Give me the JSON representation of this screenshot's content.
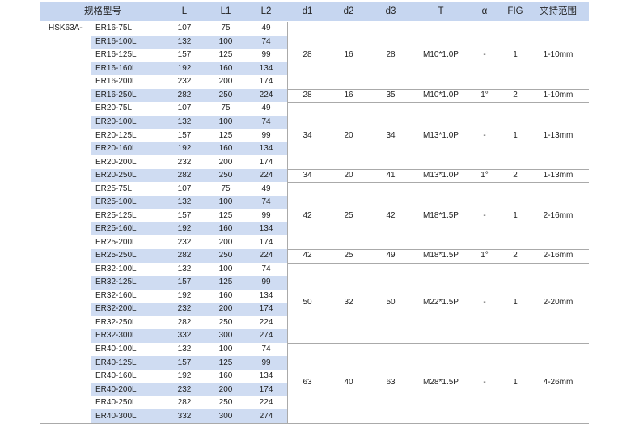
{
  "table": {
    "columns": [
      "规格型号",
      "L",
      "L1",
      "L2",
      "d1",
      "d2",
      "d3",
      "T",
      "α",
      "FIG",
      "夹持范围"
    ],
    "prefix": "HSK63A-",
    "blocks": [
      {
        "rows": [
          [
            "ER16-75L",
            "107",
            "75",
            "49"
          ],
          [
            "ER16-100L",
            "132",
            "100",
            "74"
          ],
          [
            "ER16-125L",
            "157",
            "125",
            "99"
          ],
          [
            "ER16-160L",
            "192",
            "160",
            "134"
          ],
          [
            "ER16-200L",
            "232",
            "200",
            "174"
          ]
        ],
        "cells": [
          "28",
          "16",
          "28",
          "M10*1.0P",
          "-",
          "1",
          "1-10mm"
        ]
      },
      {
        "rows": [
          [
            "ER16-250L",
            "282",
            "250",
            "224"
          ]
        ],
        "cells": [
          "28",
          "16",
          "35",
          "M10*1.0P",
          "1°",
          "2",
          "1-10mm"
        ]
      },
      {
        "rows": [
          [
            "ER20-75L",
            "107",
            "75",
            "49"
          ],
          [
            "ER20-100L",
            "132",
            "100",
            "74"
          ],
          [
            "ER20-125L",
            "157",
            "125",
            "99"
          ],
          [
            "ER20-160L",
            "192",
            "160",
            "134"
          ],
          [
            "ER20-200L",
            "232",
            "200",
            "174"
          ]
        ],
        "cells": [
          "34",
          "20",
          "34",
          "M13*1.0P",
          "-",
          "1",
          "1-13mm"
        ]
      },
      {
        "rows": [
          [
            "ER20-250L",
            "282",
            "250",
            "224"
          ]
        ],
        "cells": [
          "34",
          "20",
          "41",
          "M13*1.0P",
          "1°",
          "2",
          "1-13mm"
        ]
      },
      {
        "rows": [
          [
            "ER25-75L",
            "107",
            "75",
            "49"
          ],
          [
            "ER25-100L",
            "132",
            "100",
            "74"
          ],
          [
            "ER25-125L",
            "157",
            "125",
            "99"
          ],
          [
            "ER25-160L",
            "192",
            "160",
            "134"
          ],
          [
            "ER25-200L",
            "232",
            "200",
            "174"
          ]
        ],
        "cells": [
          "42",
          "25",
          "42",
          "M18*1.5P",
          "-",
          "1",
          "2-16mm"
        ]
      },
      {
        "rows": [
          [
            "ER25-250L",
            "282",
            "250",
            "224"
          ]
        ],
        "cells": [
          "42",
          "25",
          "49",
          "M18*1.5P",
          "1°",
          "2",
          "2-16mm"
        ]
      },
      {
        "rows": [
          [
            "ER32-100L",
            "132",
            "100",
            "74"
          ],
          [
            "ER32-125L",
            "157",
            "125",
            "99"
          ],
          [
            "ER32-160L",
            "192",
            "160",
            "134"
          ],
          [
            "ER32-200L",
            "232",
            "200",
            "174"
          ],
          [
            "ER32-250L",
            "282",
            "250",
            "224"
          ],
          [
            "ER32-300L",
            "332",
            "300",
            "274"
          ]
        ],
        "cells": [
          "50",
          "32",
          "50",
          "M22*1.5P",
          "-",
          "1",
          "2-20mm"
        ]
      },
      {
        "rows": [
          [
            "ER40-100L",
            "132",
            "100",
            "74"
          ],
          [
            "ER40-125L",
            "157",
            "125",
            "99"
          ],
          [
            "ER40-160L",
            "192",
            "160",
            "134"
          ],
          [
            "ER40-200L",
            "232",
            "200",
            "174"
          ],
          [
            "ER40-250L",
            "282",
            "250",
            "224"
          ],
          [
            "ER40-300L",
            "332",
            "300",
            "274"
          ]
        ],
        "cells": [
          "63",
          "40",
          "63",
          "M28*1.5P",
          "-",
          "1",
          "4-26mm"
        ]
      }
    ]
  }
}
